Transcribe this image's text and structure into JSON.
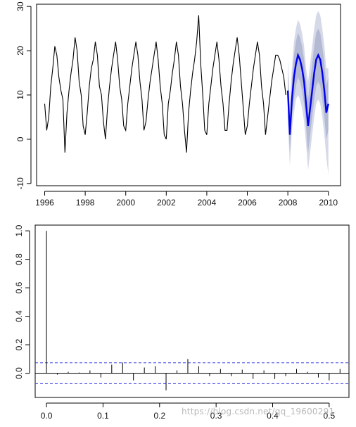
{
  "chart_data": [
    {
      "type": "line",
      "title": "",
      "xlabel": "",
      "ylabel": "",
      "xlim": [
        1995.6,
        2010.6
      ],
      "ylim": [
        -10.5,
        30.5
      ],
      "x_ticks": [
        1996,
        1998,
        2000,
        2002,
        2004,
        2006,
        2008,
        2010
      ],
      "x_tick_labels": [
        "1996",
        "1998",
        "2000",
        "2002",
        "2004",
        "2006",
        "2008",
        "2010"
      ],
      "y_ticks": [
        -10,
        0,
        10,
        20,
        30
      ],
      "y_tick_labels": [
        "-10",
        "0",
        "10",
        "20",
        "30"
      ],
      "grid": false,
      "colors": {
        "observed": "#000000",
        "forecast": "#0000ee",
        "interval_outer": "#d6d9e8",
        "interval_inner": "#b4b9d4"
      },
      "series": [
        {
          "role": "observed",
          "x": [
            1996.0,
            1996.1,
            1996.2,
            1996.3,
            1996.4,
            1996.5,
            1996.6,
            1996.7,
            1996.8,
            1996.9,
            1997.0,
            1997.1,
            1997.2,
            1997.3,
            1997.4,
            1997.5,
            1997.6,
            1997.7,
            1997.8,
            1997.9,
            1998.0,
            1998.1,
            1998.2,
            1998.3,
            1998.4,
            1998.5,
            1998.6,
            1998.7,
            1998.8,
            1998.9,
            1999.0,
            1999.1,
            1999.2,
            1999.3,
            1999.4,
            1999.5,
            1999.6,
            1999.7,
            1999.8,
            1999.9,
            2000.0,
            2000.1,
            2000.2,
            2000.3,
            2000.4,
            2000.5,
            2000.6,
            2000.7,
            2000.8,
            2000.9,
            2001.0,
            2001.1,
            2001.2,
            2001.3,
            2001.4,
            2001.5,
            2001.6,
            2001.7,
            2001.8,
            2001.9,
            2002.0,
            2002.1,
            2002.2,
            2002.3,
            2002.4,
            2002.5,
            2002.6,
            2002.7,
            2002.8,
            2002.9,
            2003.0,
            2003.1,
            2003.2,
            2003.3,
            2003.4,
            2003.5,
            2003.6,
            2003.7,
            2003.8,
            2003.9,
            2004.0,
            2004.1,
            2004.2,
            2004.3,
            2004.4,
            2004.5,
            2004.6,
            2004.7,
            2004.8,
            2004.9,
            2005.0,
            2005.1,
            2005.2,
            2005.3,
            2005.4,
            2005.5,
            2005.6,
            2005.7,
            2005.8,
            2005.9,
            2006.0,
            2006.1,
            2006.2,
            2006.3,
            2006.4,
            2006.5,
            2006.6,
            2006.7,
            2006.8,
            2006.9,
            2007.0,
            2007.1,
            2007.2,
            2007.3,
            2007.4,
            2007.5,
            2007.6,
            2007.7,
            2007.8,
            2007.9
          ],
          "y": [
            8,
            2,
            5,
            12,
            16,
            21,
            19,
            14,
            11,
            9,
            -3,
            6,
            11,
            15,
            18,
            23,
            20,
            13,
            10,
            3,
            1,
            6,
            12,
            16,
            18,
            22,
            19,
            12,
            10,
            4,
            0,
            7,
            12,
            16,
            19,
            22,
            18,
            12,
            9,
            3,
            2,
            8,
            12,
            16,
            19,
            22,
            19,
            13,
            9,
            2,
            4,
            9,
            13,
            16,
            19,
            22,
            18,
            12,
            8,
            1,
            0,
            8,
            11,
            15,
            18,
            22,
            19,
            12,
            8,
            2,
            -3,
            6,
            11,
            15,
            18,
            22,
            28,
            17,
            10,
            2,
            1,
            8,
            12,
            16,
            19,
            22,
            18,
            12,
            8,
            2,
            2,
            8,
            13,
            17,
            20,
            23,
            19,
            13,
            7,
            1,
            3,
            8,
            12,
            16,
            19,
            22,
            19,
            12,
            8,
            1,
            5,
            9,
            13,
            16,
            19,
            19,
            18,
            16,
            14,
            10
          ]
        },
        {
          "role": "forecast",
          "x": [
            2008.0,
            2008.1,
            2008.2,
            2008.3,
            2008.4,
            2008.5,
            2008.6,
            2008.7,
            2008.8,
            2008.9,
            2009.0,
            2009.1,
            2009.2,
            2009.3,
            2009.4,
            2009.5,
            2009.6,
            2009.7,
            2009.8,
            2009.9,
            2010.0
          ],
          "y": [
            11,
            1,
            9,
            14,
            17,
            19,
            18,
            16,
            13,
            8,
            3,
            7,
            11,
            15,
            18,
            19,
            18,
            15,
            11,
            6,
            8
          ],
          "lower_inner": [
            7,
            -3,
            5,
            9,
            12,
            14,
            13,
            11,
            8,
            3,
            -3,
            1,
            5,
            9,
            12,
            13,
            12,
            9,
            5,
            0,
            2
          ],
          "upper_inner": [
            15,
            5,
            13,
            19,
            22,
            24,
            23,
            21,
            18,
            13,
            9,
            13,
            17,
            21,
            24,
            25,
            24,
            21,
            17,
            12,
            14
          ],
          "lower_outer": [
            4,
            -6,
            2,
            6,
            9,
            10,
            9,
            7,
            4,
            -1,
            -7,
            -3,
            1,
            5,
            8,
            9,
            8,
            5,
            1,
            -4,
            -8
          ],
          "upper_outer": [
            18,
            8,
            16,
            22,
            25,
            27,
            26,
            24,
            21,
            16,
            13,
            17,
            21,
            25,
            28,
            29,
            28,
            25,
            21,
            16,
            16
          ]
        }
      ]
    },
    {
      "type": "bar",
      "title": "",
      "xlabel": "",
      "ylabel": "",
      "xlim": [
        -0.02,
        0.535
      ],
      "ylim": [
        -0.17,
        1.04
      ],
      "x_ticks": [
        0.0,
        0.1,
        0.2,
        0.3,
        0.4,
        0.5
      ],
      "x_tick_labels": [
        "0.0",
        "0.1",
        "0.2",
        "0.3",
        "0.4",
        "0.5"
      ],
      "y_ticks": [
        0.0,
        0.2,
        0.4,
        0.6,
        0.8,
        1.0
      ],
      "y_tick_labels": [
        "0.0",
        "0.2",
        "0.4",
        "0.6",
        "0.8",
        "1.0"
      ],
      "grid": false,
      "confidence_bound": 0.073,
      "colors": {
        "bars": "#000000",
        "bounds": "#3a3ae6"
      },
      "x": [
        0.0,
        0.0192,
        0.0385,
        0.0577,
        0.0769,
        0.0962,
        0.1154,
        0.1346,
        0.1538,
        0.1731,
        0.1923,
        0.2115,
        0.2308,
        0.25,
        0.2692,
        0.2885,
        0.3077,
        0.3269,
        0.3462,
        0.3654,
        0.3846,
        0.4038,
        0.4231,
        0.4423,
        0.4615,
        0.4808,
        0.5,
        0.5192
      ],
      "values": [
        1.0,
        -0.01,
        0.01,
        0.005,
        0.02,
        -0.03,
        0.06,
        0.075,
        -0.05,
        0.04,
        0.05,
        -0.12,
        0.02,
        0.1,
        0.05,
        -0.02,
        0.03,
        -0.02,
        0.025,
        -0.04,
        0.02,
        -0.04,
        -0.02,
        0.03,
        0.01,
        -0.03,
        -0.05,
        0.03
      ]
    }
  ],
  "watermark": "https://blog.csdn.net/qq_19600291"
}
